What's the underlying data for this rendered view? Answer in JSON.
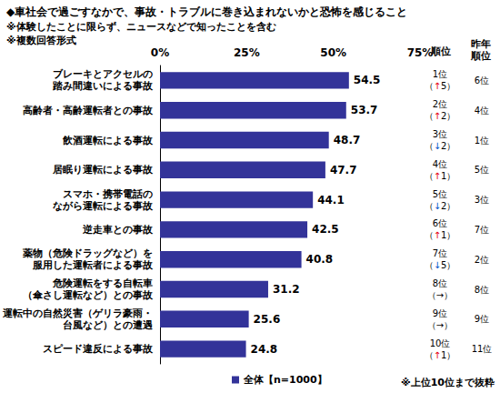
{
  "chart_data": {
    "type": "bar",
    "orientation": "horizontal",
    "title": "◆車社会で過ごすなかで、事故・トラブルに巻き込まれないかと恐怖を感じること",
    "subtitle": "※体験したことに限らず、ニュースなどで知ったことを含む\n※複数回答形式",
    "categories": [
      "ブレーキとアクセルの\n踏み間違いによる事故",
      "高齢者・高齢運転者との事故",
      "飲酒運転による事故",
      "居眠り運転による事故",
      "スマホ・携帯電話の\nながら運転による事故",
      "逆走車との事故",
      "薬物（危険ドラッグなど）を\n服用した運転者による事故",
      "危険運転をする自転車\n（傘さし運転など）との事故",
      "運転中の自然災害（ゲリラ豪雨・\n台風など）との遭遇",
      "スピード違反による事故"
    ],
    "series": [
      {
        "name": "全体【n=1000】",
        "color": "#333399",
        "values": [
          54.5,
          53.7,
          48.7,
          47.7,
          44.1,
          42.5,
          40.8,
          31.2,
          25.6,
          24.8
        ]
      }
    ],
    "xlim": [
      0,
      75
    ],
    "xticks": [
      {
        "value": 0,
        "label": "0%"
      },
      {
        "value": 25,
        "label": "25%"
      },
      {
        "value": 50,
        "label": "50%"
      },
      {
        "value": 75,
        "label": "75%"
      }
    ],
    "grid": false,
    "data_labels": true,
    "legend": "bottom",
    "rank_column": {
      "header": "順位",
      "labels": [
        "1位\n（↑5）",
        "2位\n（↑2）",
        "3位\n（↓2）",
        "4位\n（↑1）",
        "5位\n（↓2）",
        "6位\n（↑1）",
        "7位\n（↓5）",
        "8位\n（→）",
        "9位\n（→）",
        "10位\n（↑1）"
      ]
    },
    "last_year_column": {
      "header": "昨年\n順位",
      "labels": [
        "6位",
        "4位",
        "1位",
        "5位",
        "3位",
        "7位",
        "2位",
        "8位",
        "9位",
        "11位"
      ]
    },
    "note": "※上位10位まで抜粋"
  }
}
